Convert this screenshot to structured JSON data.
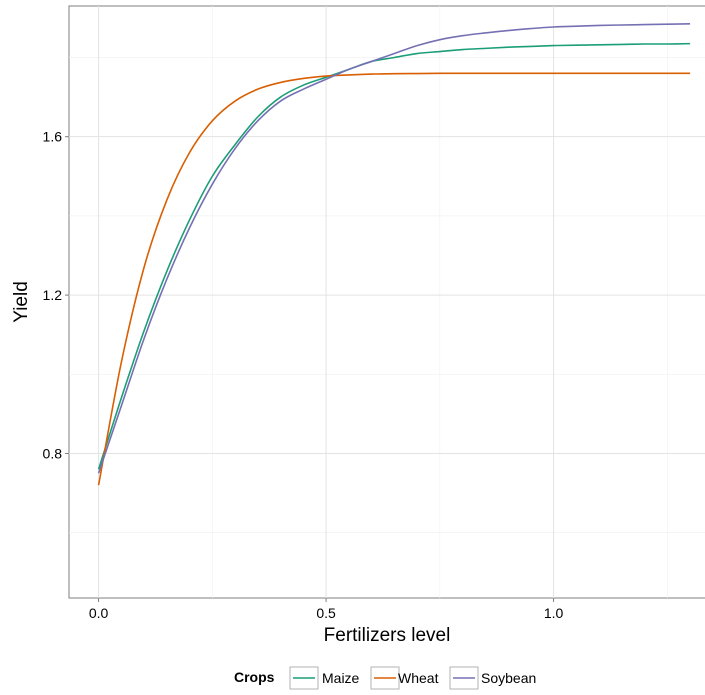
{
  "chart_data": {
    "type": "line",
    "xlabel": "Fertilizers level",
    "ylabel": "Yield",
    "xlim": [
      -0.065,
      1.335
    ],
    "ylim": [
      0.435,
      1.93
    ],
    "x_ticks": [
      0.0,
      0.5,
      1.0
    ],
    "x_tick_labels": [
      "0.0",
      "0.5",
      "1.0"
    ],
    "y_ticks": [
      0.8,
      1.2,
      1.6
    ],
    "y_tick_labels": [
      "0.8",
      "1.2",
      "1.6"
    ],
    "grid": true,
    "legend": {
      "title": "Crops",
      "position": "bottom",
      "entries": [
        "Maize",
        "Wheat",
        "Soybean"
      ]
    },
    "series": [
      {
        "name": "Maize",
        "color": "#1b9e77",
        "x": [
          0.0,
          0.05,
          0.1,
          0.15,
          0.2,
          0.25,
          0.3,
          0.35,
          0.4,
          0.45,
          0.5,
          0.55,
          0.6,
          0.65,
          0.7,
          0.75,
          0.8,
          0.85,
          0.9,
          0.95,
          1.0,
          1.05,
          1.1,
          1.15,
          1.2,
          1.25,
          1.3
        ],
        "y": [
          0.76,
          0.94,
          1.11,
          1.26,
          1.39,
          1.5,
          1.58,
          1.65,
          1.7,
          1.73,
          1.75,
          1.77,
          1.79,
          1.8,
          1.81,
          1.815,
          1.82,
          1.823,
          1.826,
          1.828,
          1.83,
          1.831,
          1.832,
          1.833,
          1.834,
          1.834,
          1.835
        ]
      },
      {
        "name": "Wheat",
        "color": "#d95f02",
        "x": [
          0.0,
          0.05,
          0.1,
          0.15,
          0.2,
          0.25,
          0.3,
          0.35,
          0.4,
          0.45,
          0.5,
          0.55,
          0.6,
          0.65,
          0.7,
          0.75,
          0.8,
          0.85,
          0.9,
          0.95,
          1.0,
          1.05,
          1.1,
          1.15,
          1.2,
          1.25,
          1.3
        ],
        "y": [
          0.72,
          1.03,
          1.27,
          1.44,
          1.56,
          1.64,
          1.69,
          1.72,
          1.737,
          1.747,
          1.753,
          1.756,
          1.758,
          1.759,
          1.7595,
          1.76,
          1.76,
          1.76,
          1.76,
          1.76,
          1.76,
          1.76,
          1.76,
          1.76,
          1.76,
          1.76,
          1.76
        ]
      },
      {
        "name": "Soybean",
        "color": "#7570b3",
        "x": [
          0.0,
          0.05,
          0.1,
          0.15,
          0.2,
          0.25,
          0.3,
          0.35,
          0.4,
          0.45,
          0.5,
          0.55,
          0.6,
          0.65,
          0.7,
          0.75,
          0.8,
          0.85,
          0.9,
          0.95,
          1.0,
          1.05,
          1.1,
          1.15,
          1.2,
          1.25,
          1.3
        ],
        "y": [
          0.75,
          0.92,
          1.09,
          1.24,
          1.37,
          1.48,
          1.57,
          1.64,
          1.69,
          1.72,
          1.745,
          1.77,
          1.79,
          1.81,
          1.83,
          1.845,
          1.855,
          1.862,
          1.868,
          1.873,
          1.877,
          1.879,
          1.881,
          1.882,
          1.883,
          1.884,
          1.885
        ]
      }
    ]
  }
}
